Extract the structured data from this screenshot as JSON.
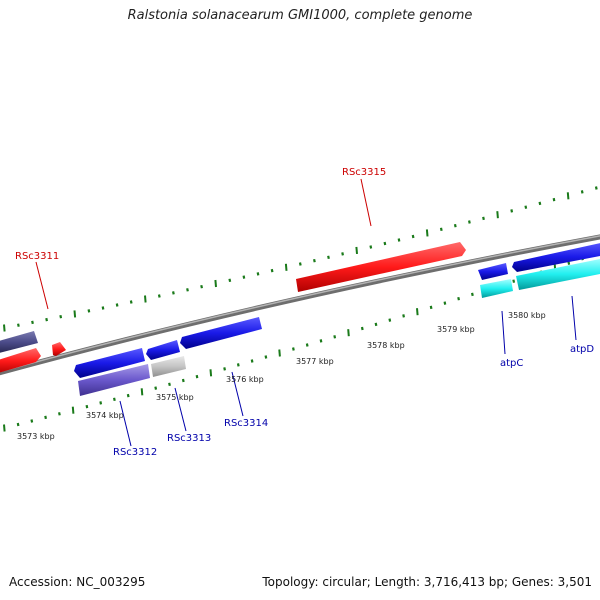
{
  "title": "Ralstonia solanacearum GMI1000, complete genome",
  "footer": {
    "accession": "Accession: NC_003295",
    "summary": "Topology: circular; Length: 3,716,413 bp; Genes: 3,501"
  },
  "colors": {
    "backbone": "#8a8a8a",
    "tick_outer": "#1a7a1a",
    "tick_inner": "#1a7a1a",
    "label_red": "#cc0000",
    "label_blue": "#0000aa",
    "gene_red": "#ff2a2a",
    "gene_blue": "#2020ee",
    "gene_cyan": "#33ffff",
    "gene_gray": "#c8c8c8",
    "gene_slate": "#6a5acd",
    "gene_darkslate": "#4a4a8a"
  },
  "kbp_labels": [
    "3573 kbp",
    "3574 kbp",
    "3575 kbp",
    "3576 kbp",
    "3577 kbp",
    "3578 kbp",
    "3579 kbp",
    "3580 kbp"
  ],
  "gene_labels": {
    "rsc3311": "RSc3311",
    "rsc3312": "RSc3312",
    "rsc3313": "RSc3313",
    "rsc3314": "RSc3314",
    "rsc3315": "RSc3315",
    "atpc": "atpC",
    "atpd": "atpD"
  }
}
